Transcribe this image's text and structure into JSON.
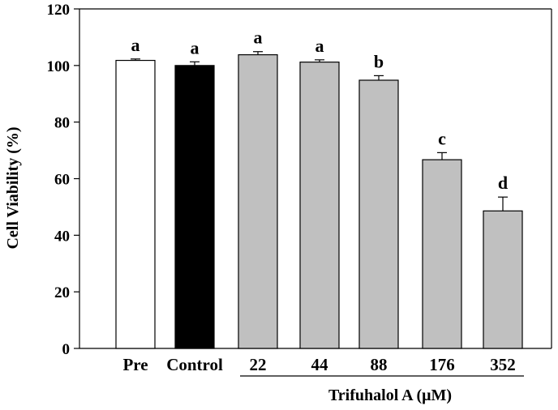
{
  "chart_data": {
    "type": "bar",
    "title": "",
    "ylabel": "Cell Viability (%)",
    "xlabel": "Trifuhalol A (μM)",
    "ylim": [
      0,
      120
    ],
    "yticks": [
      "0",
      "20",
      "40",
      "60",
      "80",
      "100",
      "120"
    ],
    "categories": [
      "Pre",
      "Control",
      "22",
      "44",
      "88",
      "176",
      "352"
    ],
    "values": [
      101.8,
      100.0,
      103.8,
      101.2,
      94.8,
      66.7,
      48.6
    ],
    "errors": [
      0.5,
      1.3,
      1.1,
      0.8,
      1.6,
      2.5,
      4.9
    ],
    "significance": [
      "a",
      "a",
      "a",
      "a",
      "b",
      "c",
      "d"
    ],
    "bar_colors": [
      "#ffffff",
      "#000000",
      "#c0c0c0",
      "#c0c0c0",
      "#c0c0c0",
      "#c0c0c0",
      "#c0c0c0"
    ],
    "grid": false,
    "group_label": "Trifuhalol A (μM)"
  }
}
